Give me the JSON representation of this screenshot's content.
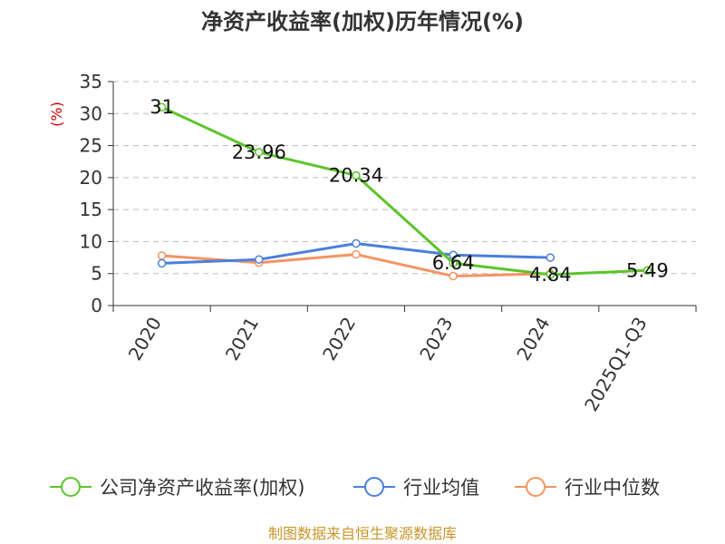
{
  "chart_data": {
    "type": "line",
    "title": "净资产收益率(加权)历年情况(%)",
    "ylabel": "(%)",
    "xlabel": "",
    "categories": [
      "2020",
      "2021",
      "2022",
      "2023",
      "2024",
      "2025Q1-Q3"
    ],
    "ylim": [
      0,
      35
    ],
    "yticks": [
      0,
      5,
      10,
      15,
      20,
      25,
      30,
      35
    ],
    "grid": true,
    "legend_position": "bottom",
    "series": [
      {
        "name": "公司净资产收益率(加权)",
        "color": "#5cc52a",
        "values": [
          31,
          23.96,
          20.34,
          6.64,
          4.84,
          5.49
        ],
        "labels": [
          "31",
          "23.96",
          "20.34",
          "6.64",
          "4.84",
          "5.49"
        ]
      },
      {
        "name": "行业均值",
        "color": "#4a7fdc",
        "values": [
          6.6,
          7.2,
          9.7,
          7.9,
          7.5,
          null
        ]
      },
      {
        "name": "行业中位数",
        "color": "#f59463",
        "values": [
          7.8,
          6.7,
          8.0,
          4.6,
          5.0,
          null
        ]
      }
    ]
  },
  "footer": "制图数据来自恒生聚源数据库"
}
